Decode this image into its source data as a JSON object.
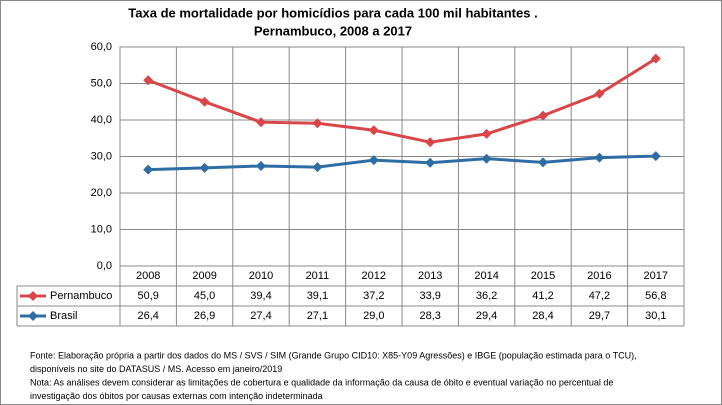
{
  "chart_data": {
    "type": "line",
    "title": "Taxa de mortalidade por homicídios para cada 100 mil habitantes .",
    "subtitle": "Pernambuco, 2008 a 2017",
    "categories": [
      "2008",
      "2009",
      "2010",
      "2011",
      "2012",
      "2013",
      "2014",
      "2015",
      "2016",
      "2017"
    ],
    "series": [
      {
        "name": "Pernambuco",
        "color": "#d9464a",
        "values": [
          50.9,
          45.0,
          39.4,
          39.1,
          37.2,
          33.9,
          36.2,
          41.2,
          47.2,
          56.8
        ],
        "value_labels": [
          "50,9",
          "45,0",
          "39,4",
          "39,1",
          "37,2",
          "33,9",
          "36,2",
          "41,2",
          "47,2",
          "56,8"
        ]
      },
      {
        "name": "Brasil",
        "color": "#2e6da4",
        "values": [
          26.4,
          26.9,
          27.4,
          27.1,
          29.0,
          28.3,
          29.4,
          28.4,
          29.7,
          30.1
        ],
        "value_labels": [
          "26,4",
          "26,9",
          "27,4",
          "27,1",
          "29,0",
          "28,3",
          "29,4",
          "28,4",
          "29,7",
          "30,1"
        ]
      }
    ],
    "ylim": [
      0,
      60
    ],
    "yticks": [
      {
        "value": 0,
        "label": "0,0"
      },
      {
        "value": 10,
        "label": "10,0"
      },
      {
        "value": 20,
        "label": "20,0"
      },
      {
        "value": 30,
        "label": "30,0"
      },
      {
        "value": 40,
        "label": "40,0"
      },
      {
        "value": 50,
        "label": "50,0"
      },
      {
        "value": 60,
        "label": "60,0"
      }
    ],
    "grid": true,
    "notes": [
      "Fonte: Elaboração própria a partir dos dados do MS / SVS / SIM (Grande Grupo CID10: X85-Y09 Agressões) e IBGE (população estimada para o TCU),",
      "disponíveis no site do DATASUS / MS. Acesso em janeiro/2019",
      "Nota:  As análises devem considerar as limitações de cobertura e qualidade da informação da causa de óbito e eventual variação no percentual de",
      "investigação dos óbitos por causas externas com intenção  indeterminada"
    ]
  }
}
